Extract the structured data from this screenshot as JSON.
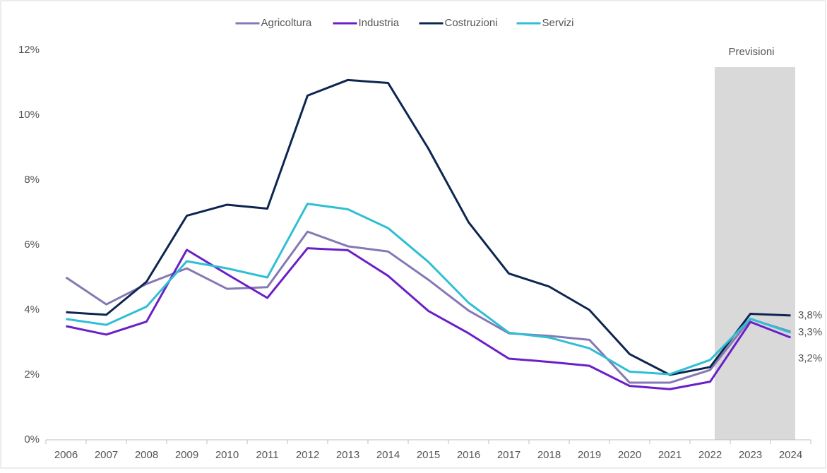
{
  "chart_data": {
    "type": "line",
    "categories": [
      "2006",
      "2007",
      "2008",
      "2009",
      "2010",
      "2011",
      "2012",
      "2013",
      "2014",
      "2015",
      "2016",
      "2017",
      "2018",
      "2019",
      "2020",
      "2021",
      "2022",
      "2023",
      "2024"
    ],
    "series": [
      {
        "name": "Agricoltura",
        "color": "#8678b4",
        "values": [
          5.0,
          4.17,
          4.8,
          5.28,
          4.65,
          4.7,
          6.41,
          5.96,
          5.8,
          4.93,
          3.98,
          3.28,
          3.2,
          3.08,
          1.76,
          1.76,
          2.15,
          3.72,
          3.33
        ]
      },
      {
        "name": "Industria",
        "color": "#6a1fc7",
        "values": [
          3.5,
          3.24,
          3.64,
          5.85,
          5.1,
          4.37,
          5.9,
          5.84,
          5.05,
          3.97,
          3.28,
          2.5,
          2.4,
          2.28,
          1.66,
          1.56,
          1.79,
          3.63,
          3.15
        ],
        "end_label": "3,2%"
      },
      {
        "name": "Costruzioni",
        "color": "#0d2650",
        "values": [
          3.93,
          3.85,
          4.87,
          6.9,
          7.24,
          7.12,
          10.6,
          11.08,
          10.99,
          8.97,
          6.7,
          5.12,
          4.72,
          4.0,
          2.64,
          2.0,
          2.24,
          3.88,
          3.83
        ],
        "end_label": "3,8%"
      },
      {
        "name": "Servizi",
        "color": "#2ebfd4",
        "values": [
          3.72,
          3.54,
          4.1,
          5.5,
          5.28,
          5.0,
          7.27,
          7.1,
          6.52,
          5.48,
          4.22,
          3.3,
          3.15,
          2.82,
          2.1,
          2.02,
          2.46,
          3.73,
          3.3
        ],
        "end_label": "3,3%"
      }
    ],
    "ylim": [
      0,
      12
    ],
    "yticks": [
      {
        "value": 0,
        "label": "0%"
      },
      {
        "value": 2,
        "label": "2%"
      },
      {
        "value": 4,
        "label": "4%"
      },
      {
        "value": 6,
        "label": "6%"
      },
      {
        "value": 8,
        "label": "8%"
      },
      {
        "value": 10,
        "label": "10%"
      },
      {
        "value": 12,
        "label": "12%"
      }
    ],
    "forecast_label": "Previsioni",
    "legend": "top"
  }
}
